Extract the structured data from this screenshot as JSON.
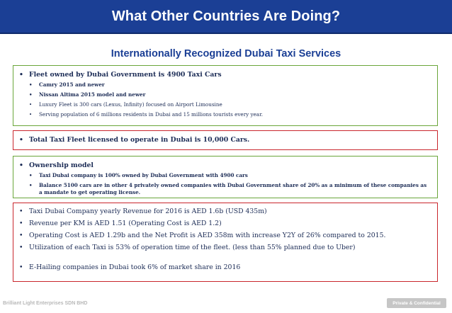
{
  "header": {
    "title": "What Other Countries Are Doing?"
  },
  "subtitle": "Internationally Recognized Dubai Taxi  Services",
  "colors": {
    "title_bar": "#1b3f95",
    "text": "#1c2c56",
    "green_border": "#6aa63a",
    "red_border": "#c9262c"
  },
  "box1": {
    "heading": "Fleet owned by Dubai Government is 4900 Taxi Cars",
    "items": [
      "Camry 2015 and newer",
      "Nissan Altima 2015 model and newer",
      "Luxury Fleet is 300 cars (Lexus, Infinity) focused on Airport Limousine",
      "Serving population of 6 millions residents in Dubai and 15 millions tourists every year."
    ]
  },
  "box2": {
    "heading": "Total Taxi Fleet licensed to operate in Dubai is 10,000 Cars."
  },
  "box3": {
    "heading": "Ownership model",
    "items": [
      "Taxi Dubai company is 100% owned by Dubai Government with 4900 cars",
      "Balance 5100 cars are in other 4 privately owned companies with Dubai Government share of 20% as a minimum of these companies as a mandate to get operating license."
    ]
  },
  "box4": {
    "items": [
      "Taxi Dubai Company yearly Revenue for 2016 is AED 1.6b (USD 435m)",
      "Revenue per KM is AED 1.51 (Operating Cost is AED 1.2)",
      "Operating Cost is AED 1.29b and the Net Profit is AED 358m with increase Y2Y of 26% compared to 2015.",
      "Utilization of each Taxi is 53% of operation time of the fleet. (less than 55% planned due to Uber)",
      "E-Hailing companies in Dubai took 6% of market share in 2016"
    ]
  },
  "bullet": "•",
  "footer": {
    "company": "Brilliant Light Enterprises SDN BHD",
    "badge": "Private & Confidential"
  }
}
